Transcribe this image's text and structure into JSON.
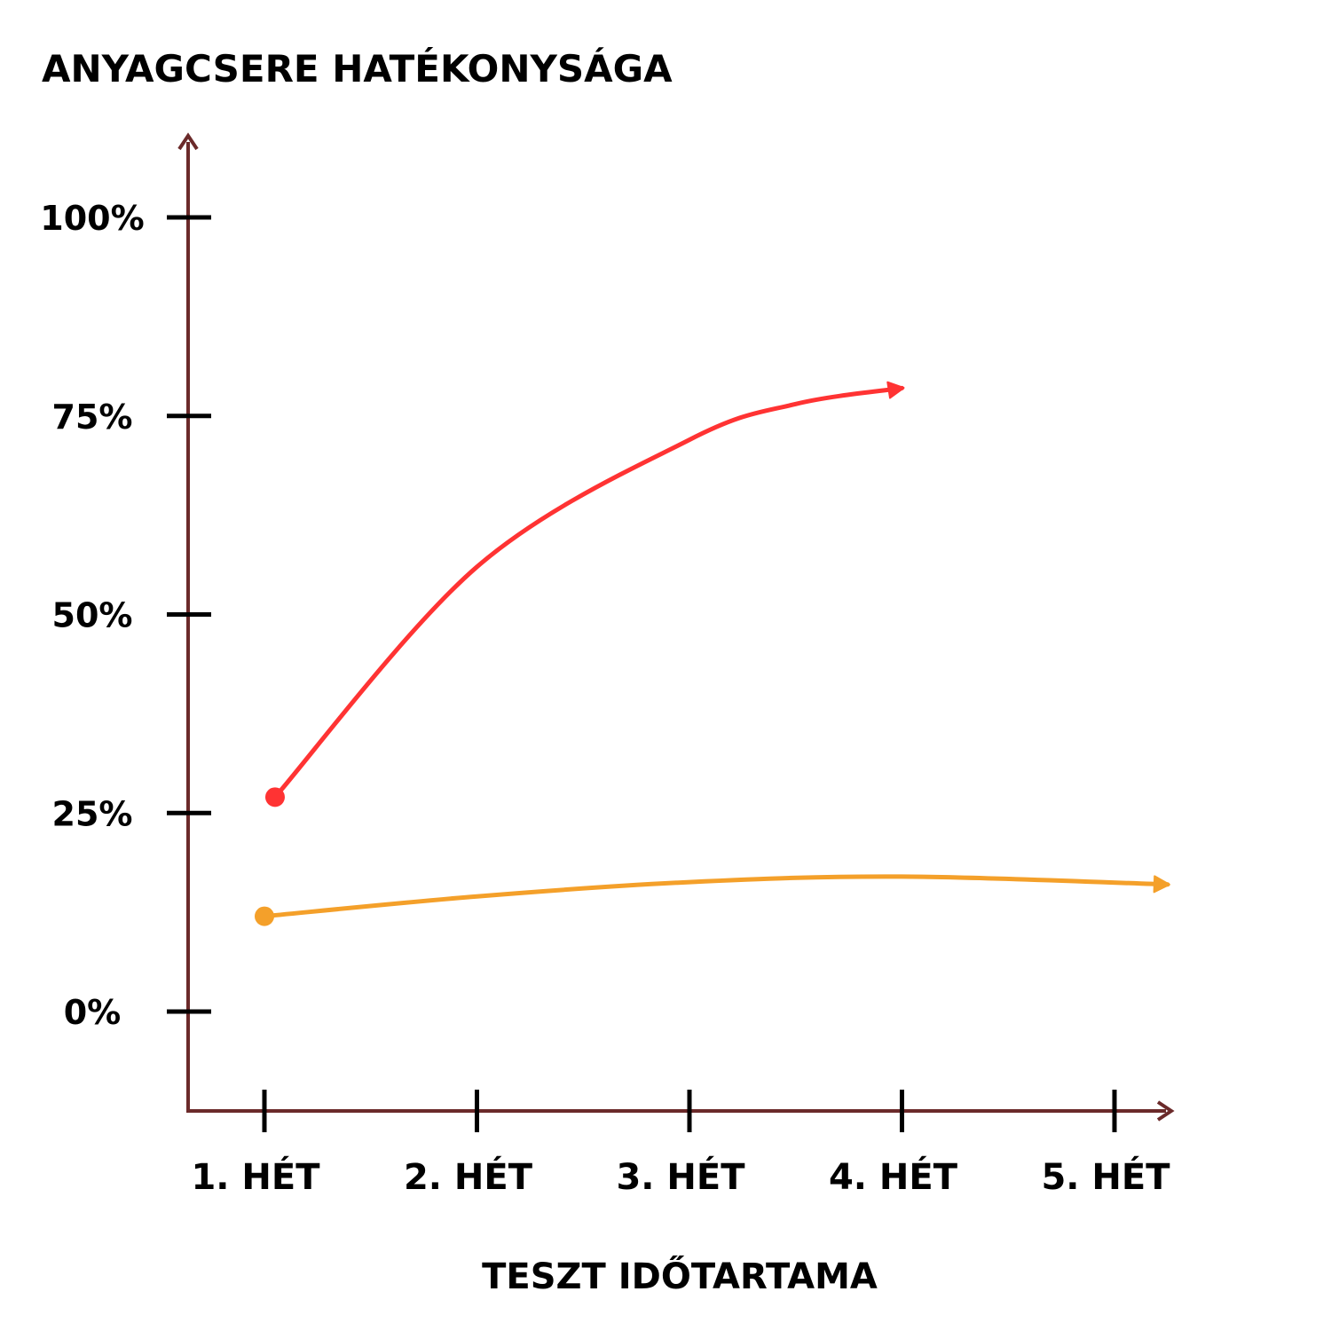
{
  "chart_data": {
    "type": "line",
    "title": "ANYAGCSERE HATÉKONYSÁGA",
    "xlabel": "TESZT IDŐTARTAMA",
    "ylabel": "",
    "categories": [
      "1. HÉT",
      "2. HÉT",
      "3. HÉT",
      "4. HÉT",
      "5. HÉT"
    ],
    "y_ticks": [
      "0%",
      "25%",
      "50%",
      "75%",
      "100%"
    ],
    "y_tick_values": [
      0,
      25,
      50,
      75,
      100
    ],
    "ylim": [
      0,
      100
    ],
    "grid": false,
    "legend": "none",
    "axis_color": "#6B2A2A",
    "series": [
      {
        "color": "#FF3333",
        "start_marker": "dot",
        "end_marker": "arrow",
        "points": [
          {
            "x": 1.05,
            "y": 27
          },
          {
            "x": 2.0,
            "y": 56
          },
          {
            "x": 3.0,
            "y": 72
          },
          {
            "x": 3.5,
            "y": 76.5
          },
          {
            "x": 4.0,
            "y": 78.5
          }
        ]
      },
      {
        "color": "#F4A02A",
        "start_marker": "dot",
        "end_marker": "arrow",
        "points": [
          {
            "x": 1.0,
            "y": 12
          },
          {
            "x": 2.0,
            "y": 14.5
          },
          {
            "x": 3.0,
            "y": 16.3
          },
          {
            "x": 4.0,
            "y": 17
          },
          {
            "x": 5.25,
            "y": 16
          }
        ]
      }
    ]
  }
}
